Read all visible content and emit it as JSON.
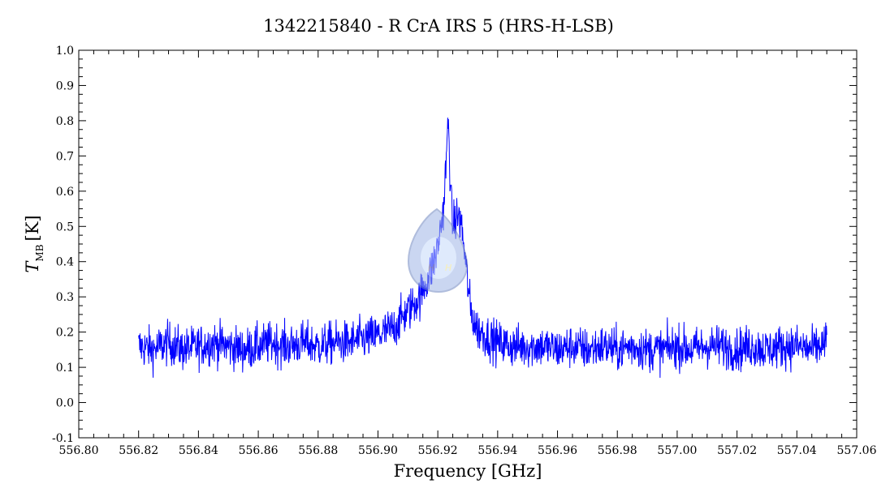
{
  "chart_data": {
    "type": "line",
    "title": "1342215840 - R CrA IRS 5 (HRS-H-LSB)",
    "xlabel": "Frequency [GHz]",
    "ylabel_main": "T",
    "ylabel_sub": "MB",
    "ylabel_unit": "[K]",
    "xlim": [
      556.8,
      557.06
    ],
    "ylim": [
      -0.1,
      1.0
    ],
    "x_ticks": [
      "556.80",
      "556.82",
      "556.84",
      "556.86",
      "556.88",
      "556.90",
      "556.92",
      "556.94",
      "556.96",
      "556.98",
      "557.00",
      "557.02",
      "557.04",
      "557.06"
    ],
    "y_ticks": [
      "-0.1",
      "0.0",
      "0.1",
      "0.2",
      "0.3",
      "0.4",
      "0.5",
      "0.6",
      "0.7",
      "0.8",
      "0.9",
      "1.0"
    ],
    "grid": false,
    "line_color": "#0000ff",
    "series": [
      {
        "name": "",
        "x": [
          556.82,
          556.825,
          556.83,
          556.835,
          556.84,
          556.845,
          556.85,
          556.855,
          556.86,
          556.865,
          556.87,
          556.875,
          556.88,
          556.885,
          556.89,
          556.895,
          556.9,
          556.905,
          556.908,
          556.911,
          556.914,
          556.916,
          556.918,
          556.92,
          556.921,
          556.922,
          556.9225,
          556.923,
          556.9235,
          556.924,
          556.9245,
          556.925,
          556.926,
          556.927,
          556.928,
          556.929,
          556.93,
          556.931,
          556.933,
          556.936,
          556.94,
          556.945,
          556.95,
          556.955,
          556.96,
          556.965,
          556.97,
          556.975,
          556.98,
          556.985,
          556.99,
          556.995,
          557.0,
          557.005,
          557.01,
          557.015,
          557.02,
          557.025,
          557.03,
          557.035,
          557.04,
          557.045,
          557.05
        ],
        "y": [
          0.16,
          0.15,
          0.17,
          0.15,
          0.16,
          0.17,
          0.16,
          0.15,
          0.16,
          0.17,
          0.16,
          0.17,
          0.16,
          0.17,
          0.17,
          0.18,
          0.19,
          0.21,
          0.24,
          0.27,
          0.3,
          0.34,
          0.38,
          0.44,
          0.5,
          0.56,
          0.64,
          0.72,
          0.8,
          0.68,
          0.56,
          0.5,
          0.52,
          0.53,
          0.5,
          0.42,
          0.34,
          0.26,
          0.21,
          0.19,
          0.17,
          0.16,
          0.16,
          0.16,
          0.15,
          0.16,
          0.15,
          0.16,
          0.15,
          0.16,
          0.15,
          0.15,
          0.16,
          0.15,
          0.16,
          0.16,
          0.15,
          0.16,
          0.15,
          0.16,
          0.16,
          0.15,
          0.17
        ]
      }
    ],
    "noise_amplitude": 0.06
  }
}
